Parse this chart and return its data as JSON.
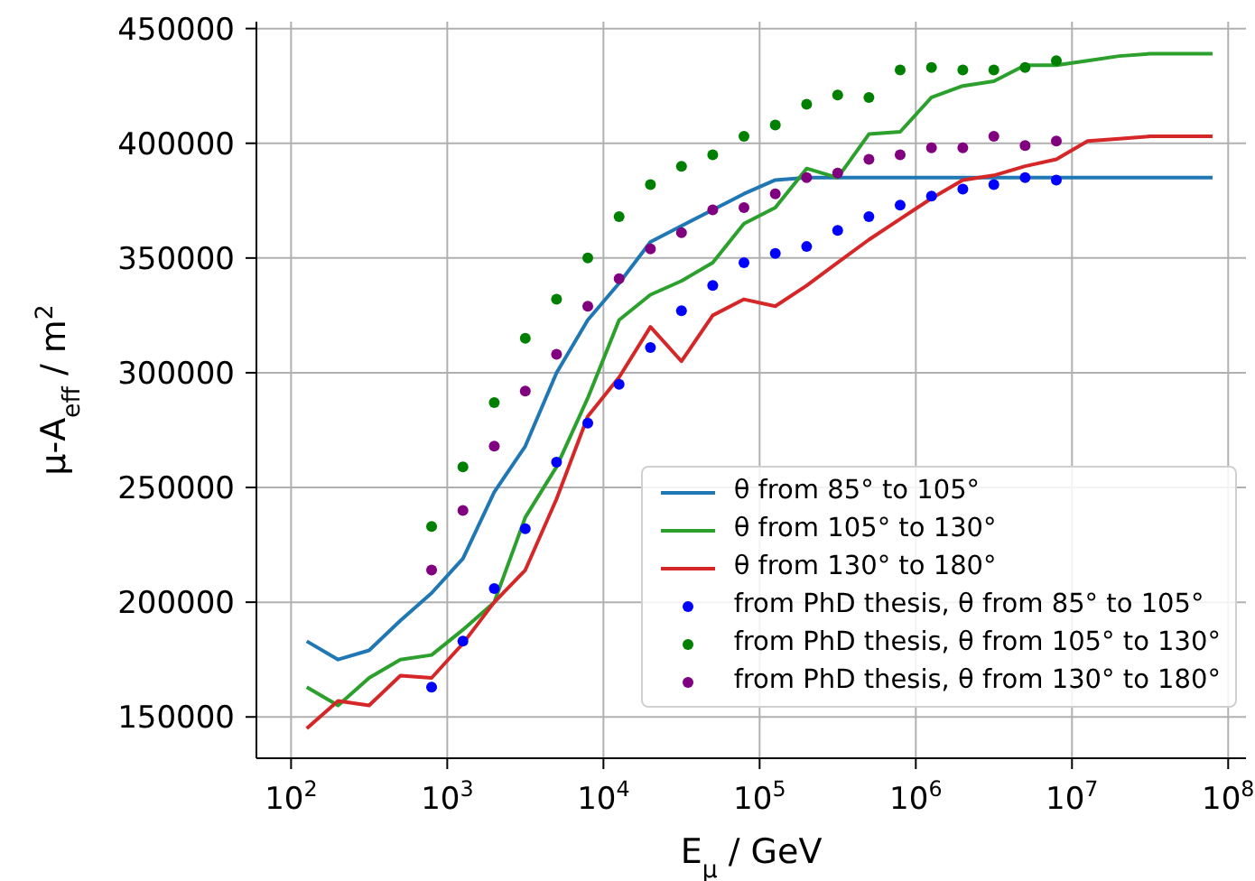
{
  "chart_data": {
    "type": "line",
    "xlabel": "E$_{μ}$ / GeV",
    "ylabel": "μ-A$_{eff}$ / m$^{2}$",
    "log": "x",
    "grid": true,
    "legend": "bottom right",
    "marker": "none",
    "line_style": "solid",
    "xlim": [
      60,
      130000000
    ],
    "xticks": [
      {
        "value": 100,
        "label": "10$^{2}$"
      },
      {
        "value": 1000,
        "label": "10$^{3}$"
      },
      {
        "value": 10000,
        "label": "10$^{4}$"
      },
      {
        "value": 100000,
        "label": "10$^{5}$"
      },
      {
        "value": 1000000,
        "label": "10$^{6}$"
      },
      {
        "value": 10000000,
        "label": "10$^{7}$"
      },
      {
        "value": 100000000,
        "label": "10$^{8}$"
      }
    ],
    "ylim": [
      132000,
      453000
    ],
    "yticks": [
      150000,
      200000,
      250000,
      300000,
      350000,
      400000,
      450000
    ],
    "series": [
      {
        "name": "θ from 85° to 105°",
        "color": "#1f77b4",
        "x": [
          126,
          200,
          316,
          501,
          794,
          1260,
          2000,
          3160,
          5010,
          7940,
          12600,
          20000,
          31600,
          50100,
          79400,
          126000,
          200000,
          316000,
          501000,
          794000,
          1260000,
          2000000,
          3160000,
          5010000,
          7940000,
          12600000,
          20000000,
          31600000,
          50100000,
          79400000
        ],
        "values": [
          183000,
          175000,
          179000,
          192000,
          204000,
          219000,
          248000,
          268000,
          300000,
          323000,
          339000,
          357000,
          364000,
          371000,
          378000,
          384000,
          385000,
          385000,
          385000,
          385000,
          385000,
          385000,
          385000,
          385000,
          385000,
          385000,
          385000,
          385000,
          385000,
          385000
        ]
      },
      {
        "name": "θ from 105° to 130°",
        "color": "#2ca02c",
        "x": [
          126,
          200,
          316,
          501,
          794,
          1260,
          2000,
          3160,
          5010,
          7940,
          12600,
          20000,
          31600,
          50100,
          79400,
          126000,
          200000,
          316000,
          501000,
          794000,
          1260000,
          2000000,
          3160000,
          5010000,
          7940000,
          12600000,
          20000000,
          31600000,
          50100000,
          79400000
        ],
        "values": [
          163000,
          155000,
          167000,
          175000,
          177000,
          188000,
          200000,
          237000,
          259000,
          289000,
          323000,
          334000,
          340000,
          348000,
          365000,
          372000,
          389000,
          385000,
          404000,
          405000,
          420000,
          425000,
          427000,
          434000,
          434000,
          436000,
          438000,
          439000,
          439000,
          439000
        ]
      },
      {
        "name": "θ from 130° to 180°",
        "color": "#d62728",
        "x": [
          126,
          200,
          316,
          501,
          794,
          1260,
          2000,
          3160,
          5010,
          7940,
          12600,
          20000,
          31600,
          50100,
          79400,
          126000,
          200000,
          316000,
          501000,
          794000,
          1260000,
          2000000,
          3160000,
          5010000,
          7940000,
          12600000,
          20000000,
          31600000,
          50100000,
          79400000
        ],
        "values": [
          145000,
          157000,
          155000,
          168000,
          167000,
          182000,
          200000,
          214000,
          245000,
          281000,
          298000,
          320000,
          305000,
          325000,
          332000,
          329000,
          338000,
          348000,
          358000,
          367000,
          376000,
          384000,
          386000,
          390000,
          393000,
          401000,
          402000,
          403000,
          403000,
          403000
        ]
      },
      {
        "name": "from PhD thesis, θ from 85° to 105°",
        "type": "scatter",
        "marker": "circle",
        "color": "#0000ff",
        "x": [
          794,
          1260,
          2000,
          3160,
          5010,
          7940,
          12600,
          20000,
          31600,
          50100,
          79400,
          126000,
          200000,
          316000,
          501000,
          794000,
          1260000,
          2000000,
          3160000,
          5010000,
          7940000
        ],
        "values": [
          163000,
          183000,
          206000,
          232000,
          261000,
          278000,
          295000,
          311000,
          327000,
          338000,
          348000,
          352000,
          355000,
          362000,
          368000,
          373000,
          377000,
          380000,
          382000,
          385000,
          384000
        ]
      },
      {
        "name": "from PhD thesis, θ from 105° to 130°",
        "type": "scatter",
        "marker": "circle",
        "color": "#008000",
        "x": [
          794,
          1260,
          2000,
          3160,
          5010,
          7940,
          12600,
          20000,
          31600,
          50100,
          79400,
          126000,
          200000,
          316000,
          501000,
          794000,
          1260000,
          2000000,
          3160000,
          5010000,
          7940000
        ],
        "values": [
          233000,
          259000,
          287000,
          315000,
          332000,
          350000,
          368000,
          382000,
          390000,
          395000,
          403000,
          408000,
          417000,
          421000,
          420000,
          432000,
          433000,
          432000,
          432000,
          433000,
          436000
        ]
      },
      {
        "name": "from PhD thesis, θ from 130° to 180°",
        "type": "scatter",
        "marker": "circle",
        "color": "#800080",
        "x": [
          794,
          1260,
          2000,
          3160,
          5010,
          7940,
          12600,
          20000,
          31600,
          50100,
          79400,
          126000,
          200000,
          316000,
          501000,
          794000,
          1260000,
          2000000,
          3160000,
          5010000,
          7940000
        ],
        "values": [
          214000,
          240000,
          268000,
          292000,
          308000,
          329000,
          341000,
          354000,
          361000,
          371000,
          372000,
          378000,
          385000,
          387000,
          393000,
          395000,
          398000,
          398000,
          403000,
          399000,
          401000
        ]
      }
    ]
  }
}
